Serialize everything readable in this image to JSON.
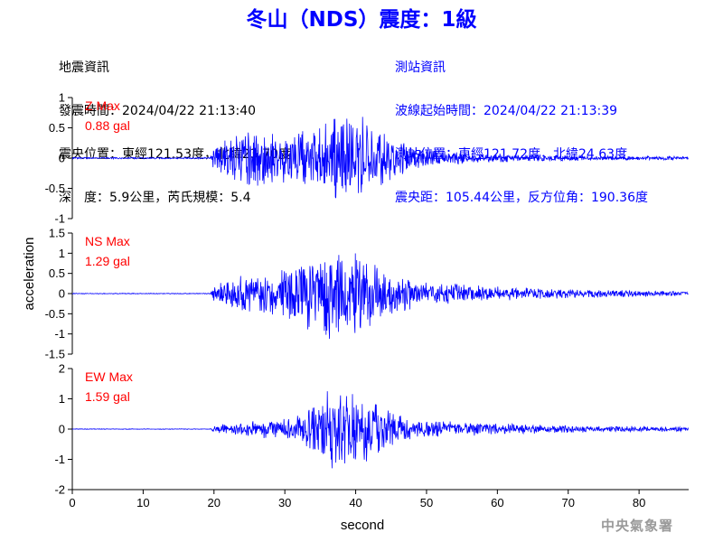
{
  "title": "冬山（NDS）震度：1級",
  "quake_info": {
    "heading": "地震資訊",
    "time": "發震時間：2024/04/22 21:13:40",
    "epicenter": "震央位置：東經121.53度，北緯23.70度",
    "depth_magnitude": "深　度：5.9公里，芮氏規模：5.4"
  },
  "station_info": {
    "heading": "測站資訊",
    "wave_start": "波線起始時間：2024/04/22 21:13:39",
    "location": "測站位置：東經121.72度，北緯24.63度",
    "distance_azimuth": "震央距：105.44公里，反方位角：190.36度"
  },
  "footer": "中央氣象署",
  "colors": {
    "trace": "#0000ff",
    "label": "#ff0000",
    "title": "#0000ff",
    "footer": "#9a9a9a"
  },
  "chart_data": {
    "type": "line",
    "xlabel": "second",
    "ylabel": "acceleration",
    "xlim": [
      0,
      87
    ],
    "xticks": [
      0,
      10,
      20,
      30,
      40,
      50,
      60,
      70,
      80
    ],
    "panels": [
      {
        "component": "Z",
        "max_label": "Z Max",
        "max_value": "0.88 gal",
        "ylim": [
          -1,
          1
        ],
        "yticks": [
          1,
          0.5,
          0,
          -0.5,
          -1
        ],
        "envelope": [
          [
            0,
            0.015
          ],
          [
            19.5,
            0.015
          ],
          [
            20,
            0.25
          ],
          [
            21,
            0.3
          ],
          [
            23,
            0.45
          ],
          [
            26,
            0.55
          ],
          [
            30,
            0.45
          ],
          [
            33,
            0.5
          ],
          [
            35,
            0.55
          ],
          [
            37,
            0.88
          ],
          [
            40,
            0.8
          ],
          [
            42,
            0.65
          ],
          [
            45,
            0.4
          ],
          [
            48,
            0.2
          ],
          [
            55,
            0.1
          ],
          [
            65,
            0.06
          ],
          [
            75,
            0.04
          ],
          [
            87,
            0.03
          ]
        ]
      },
      {
        "component": "NS",
        "max_label": "NS Max",
        "max_value": "1.29 gal",
        "ylim": [
          -1.5,
          1.5
        ],
        "yticks": [
          1.5,
          1,
          0.5,
          0,
          -0.5,
          -1,
          -1.5
        ],
        "envelope": [
          [
            0,
            0.01
          ],
          [
            19.5,
            0.01
          ],
          [
            20,
            0.2
          ],
          [
            22,
            0.35
          ],
          [
            25,
            0.55
          ],
          [
            28,
            0.6
          ],
          [
            31,
            0.75
          ],
          [
            33,
            0.9
          ],
          [
            35,
            1.1
          ],
          [
            37,
            1.29
          ],
          [
            40,
            1.1
          ],
          [
            43,
            0.85
          ],
          [
            45,
            0.6
          ],
          [
            48,
            0.4
          ],
          [
            52,
            0.3
          ],
          [
            58,
            0.2
          ],
          [
            65,
            0.15
          ],
          [
            75,
            0.1
          ],
          [
            87,
            0.06
          ]
        ]
      },
      {
        "component": "EW",
        "max_label": "EW Max",
        "max_value": "1.59 gal",
        "ylim": [
          -2,
          2
        ],
        "yticks": [
          2,
          1,
          0,
          -1,
          -2
        ],
        "envelope": [
          [
            0,
            0.01
          ],
          [
            19.5,
            0.01
          ],
          [
            20,
            0.15
          ],
          [
            23,
            0.2
          ],
          [
            26,
            0.3
          ],
          [
            30,
            0.4
          ],
          [
            33,
            0.6
          ],
          [
            35,
            1.2
          ],
          [
            36,
            1.59
          ],
          [
            38,
            1.4
          ],
          [
            40,
            1.3
          ],
          [
            42,
            1.0
          ],
          [
            44,
            0.8
          ],
          [
            46,
            0.5
          ],
          [
            50,
            0.3
          ],
          [
            55,
            0.25
          ],
          [
            60,
            0.2
          ],
          [
            70,
            0.12
          ],
          [
            80,
            0.1
          ],
          [
            87,
            0.08
          ]
        ]
      }
    ]
  }
}
